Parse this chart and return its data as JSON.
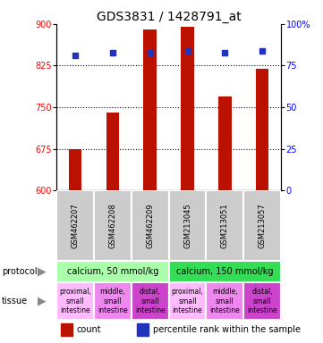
{
  "title": "GDS3831 / 1428791_at",
  "samples": [
    "GSM462207",
    "GSM462208",
    "GSM462209",
    "GSM213045",
    "GSM213051",
    "GSM213057"
  ],
  "count_values": [
    675,
    740,
    890,
    895,
    770,
    820
  ],
  "percentile_values": [
    81,
    83,
    83,
    84,
    83,
    84
  ],
  "ylim_left": [
    600,
    900
  ],
  "ylim_right": [
    0,
    100
  ],
  "yticks_left": [
    600,
    675,
    750,
    825,
    900
  ],
  "yticks_right": [
    0,
    25,
    50,
    75,
    100
  ],
  "bar_color": "#bb1100",
  "dot_color": "#2233bb",
  "bg_color": "#ffffff",
  "sample_bg": "#cccccc",
  "protocol_groups": [
    {
      "label": "calcium, 50 mmol/kg",
      "color": "#aaffaa",
      "span": [
        0,
        3
      ]
    },
    {
      "label": "calcium, 150 mmol/kg",
      "color": "#33dd55",
      "span": [
        3,
        6
      ]
    }
  ],
  "tissue_colors": [
    "#ffbbff",
    "#ee88ee",
    "#cc44cc",
    "#ffbbff",
    "#ee88ee",
    "#cc44cc"
  ],
  "tissue_labels": [
    "proximal,\nsmall\nintestine",
    "middle,\nsmall\nintestine",
    "distal,\nsmall\nintestine",
    "proximal,\nsmall\nintestine",
    "middle,\nsmall\nintestine",
    "distal,\nsmall\nintestine"
  ],
  "title_fontsize": 10,
  "tick_fontsize": 7,
  "sample_fontsize": 6,
  "protocol_fontsize": 7,
  "tissue_fontsize": 5.5,
  "legend_fontsize": 7,
  "label_fontsize": 7
}
